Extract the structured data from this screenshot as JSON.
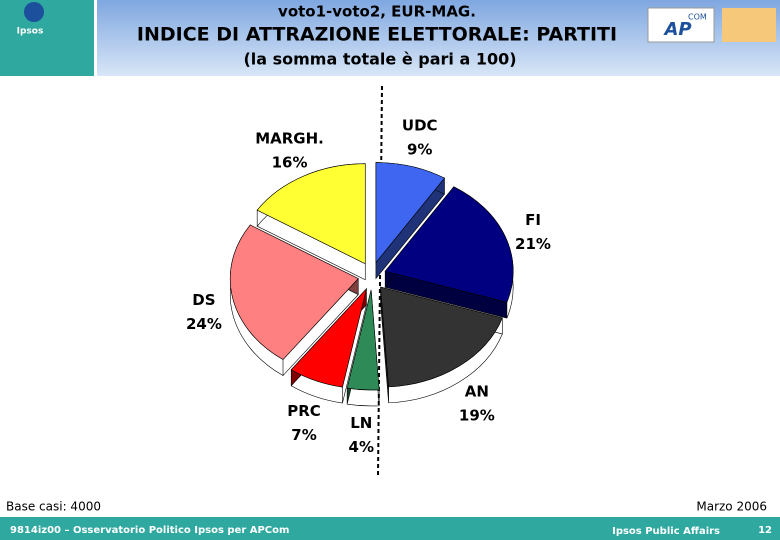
{
  "header": {
    "logo": "Ipsos",
    "line1": "voto1-voto2, EUR-MAG.",
    "line2": "INDICE DI ATTRAZIONE ELETTORALE: PARTITI",
    "line3": "(la somma totale è pari a 100)",
    "partner_logo_top": "COM",
    "partner_logo": "AP"
  },
  "chart_data": {
    "type": "pie",
    "categories": [
      "UDC",
      "FI",
      "AN",
      "LN",
      "PRC",
      "DS",
      "MARGH."
    ],
    "values": [
      9,
      21,
      19,
      4,
      7,
      24,
      16
    ],
    "value_labels": [
      "9%",
      "21%",
      "19%",
      "4%",
      "7%",
      "24%",
      "16%"
    ],
    "colors": [
      "#3f66f0",
      "#000080",
      "#333333",
      "#2e8b57",
      "#ff0000",
      "#ff8080",
      "#ffff33"
    ]
  },
  "notes": {
    "base": "Base casi: 4000",
    "date": "Marzo 2006"
  },
  "footer": {
    "left": "9814iz00 – Osservatorio Politico Ipsos per APCom",
    "right": "Ipsos Public Affairs",
    "page": "12"
  }
}
